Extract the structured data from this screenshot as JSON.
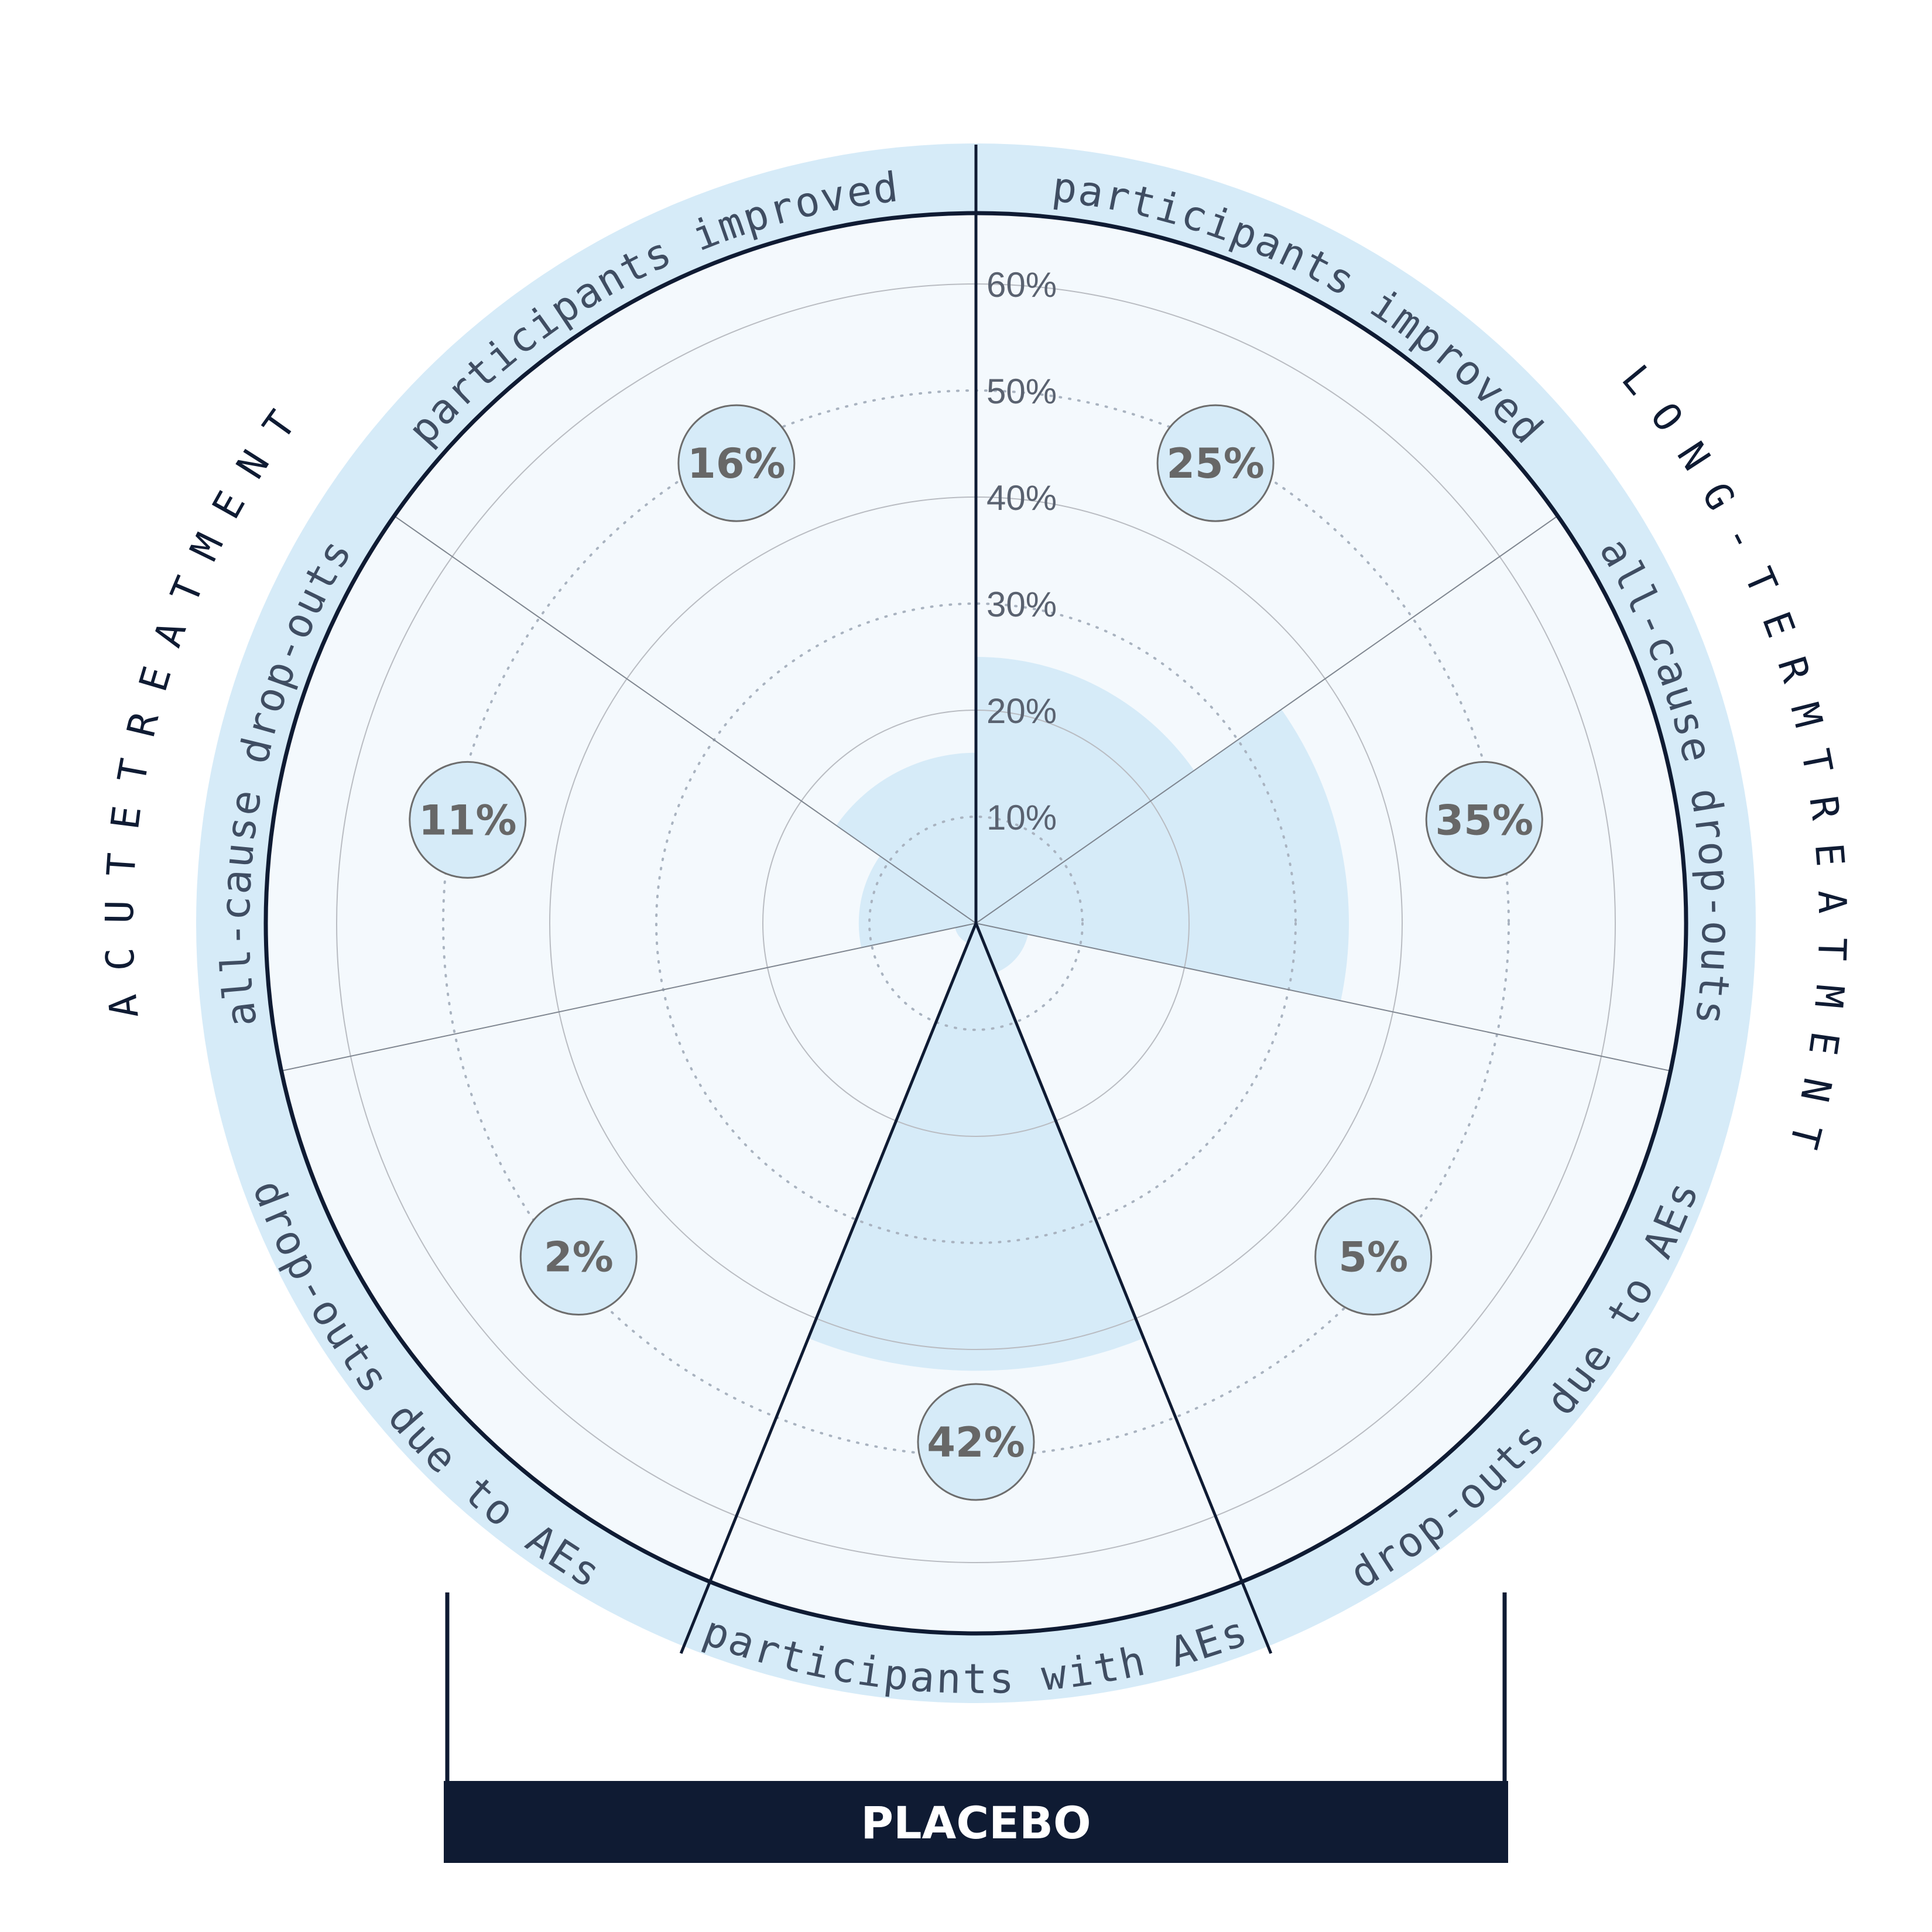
{
  "chart_data": {
    "type": "polar-area",
    "unit": "%",
    "radial_ticks": [
      "10%",
      "20%",
      "30%",
      "40%",
      "50%",
      "60%"
    ],
    "radial_max": 60,
    "segments": [
      {
        "label": "participants improved",
        "group": "long-term",
        "value": 25,
        "value_label": "25%"
      },
      {
        "label": "all-cause drop-outs",
        "group": "long-term",
        "value": 35,
        "value_label": "35%"
      },
      {
        "label": "drop-outs due to AEs",
        "group": "long-term",
        "value": 5,
        "value_label": "5%"
      },
      {
        "label": "participants with AEs",
        "group": "placebo",
        "value": 42,
        "value_label": "42%"
      },
      {
        "label": "drop-outs due to AEs",
        "group": "acute",
        "value": 2,
        "value_label": "2%"
      },
      {
        "label": "all-cause drop-outs",
        "group": "acute",
        "value": 11,
        "value_label": "11%"
      },
      {
        "label": "participants improved",
        "group": "acute",
        "value": 16,
        "value_label": "16%"
      }
    ],
    "group_labels": {
      "acute": "ACUTE TREATMENT",
      "long_term": "LONG-TERM TREATMENT",
      "placebo": "PLACEBO"
    },
    "colors": {
      "fill": "#d6ebf8",
      "background": "#f4f9fd",
      "ring": "#d6ebf8",
      "outline": "#0f1b33",
      "grid": "#b9bcc2",
      "value_text": "#676767",
      "footer": "#0f1b33"
    },
    "grid": true
  }
}
